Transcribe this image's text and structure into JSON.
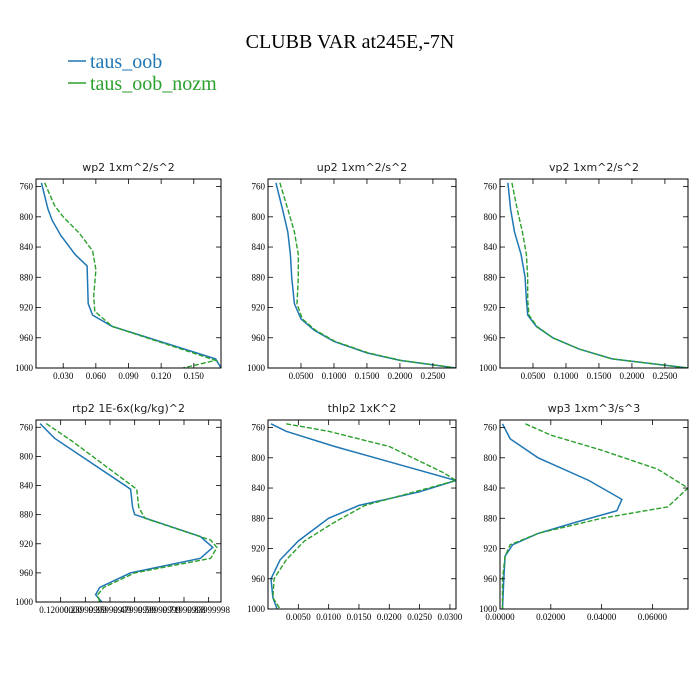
{
  "title": "CLUBB VAR at245E,-7N",
  "legend": [
    {
      "label": "taus_oob",
      "color": "#1f77b4"
    },
    {
      "label": "taus_oob_nozm",
      "color": "#2ca02c"
    }
  ],
  "chart_data": [
    {
      "type": "line",
      "title": "wp2   1xm^2/s^2",
      "ylim": [
        1000,
        750
      ],
      "yticks": [
        760,
        800,
        840,
        880,
        920,
        960,
        1000
      ],
      "xlim": [
        0.005,
        0.175
      ],
      "xticks": [
        0.03,
        0.06,
        0.09,
        0.12,
        0.15
      ],
      "xtick_labels": [
        "0.030",
        "0.060",
        "0.090",
        "0.120",
        "0.150"
      ],
      "series": [
        {
          "name": "taus_oob",
          "color": "#1f77b4",
          "dashed": false,
          "x": [
            0.01,
            0.016,
            0.02,
            0.028,
            0.041,
            0.052,
            0.053,
            0.057,
            0.075,
            0.17,
            0.175
          ],
          "y": [
            755,
            790,
            805,
            825,
            850,
            865,
            915,
            930,
            945,
            988,
            1000
          ]
        },
        {
          "name": "taus_oob_nozm",
          "color": "#2ca02c",
          "dashed": true,
          "x": [
            0.013,
            0.022,
            0.03,
            0.045,
            0.057,
            0.06,
            0.058,
            0.059,
            0.075,
            0.17,
            0.14
          ],
          "y": [
            755,
            785,
            800,
            822,
            845,
            870,
            905,
            925,
            945,
            990,
            1000
          ]
        }
      ]
    },
    {
      "type": "line",
      "title": "up2   1xm^2/s^2",
      "ylim": [
        1000,
        750
      ],
      "yticks": [
        760,
        800,
        840,
        880,
        920,
        960,
        1000
      ],
      "xlim": [
        0.0,
        0.285
      ],
      "xticks": [
        0.05,
        0.1,
        0.15,
        0.2,
        0.25
      ],
      "xtick_labels": [
        "0.0500",
        "0.1000",
        "0.1500",
        "0.2000",
        "0.2500"
      ],
      "series": [
        {
          "name": "taus_oob",
          "color": "#1f77b4",
          "dashed": false,
          "x": [
            0.012,
            0.022,
            0.03,
            0.034,
            0.036,
            0.04,
            0.05,
            0.07,
            0.1,
            0.15,
            0.2,
            0.285
          ],
          "y": [
            755,
            790,
            820,
            850,
            880,
            915,
            935,
            950,
            965,
            980,
            990,
            1000
          ]
        },
        {
          "name": "taus_oob_nozm",
          "color": "#2ca02c",
          "dashed": true,
          "x": [
            0.018,
            0.03,
            0.04,
            0.046,
            0.046,
            0.044,
            0.052,
            0.072,
            0.102,
            0.152,
            0.202,
            0.285
          ],
          "y": [
            755,
            790,
            820,
            850,
            880,
            915,
            935,
            950,
            965,
            980,
            990,
            1000
          ]
        }
      ]
    },
    {
      "type": "line",
      "title": "vp2   1xm^2/s^2",
      "ylim": [
        1000,
        750
      ],
      "yticks": [
        760,
        800,
        840,
        880,
        920,
        960,
        1000
      ],
      "xlim": [
        0.0,
        0.285
      ],
      "xticks": [
        0.05,
        0.1,
        0.15,
        0.2,
        0.25
      ],
      "xtick_labels": [
        "0.0500",
        "0.1000",
        "0.1500",
        "0.2000",
        "0.2500"
      ],
      "series": [
        {
          "name": "taus_oob",
          "color": "#1f77b4",
          "dashed": false,
          "x": [
            0.012,
            0.016,
            0.022,
            0.032,
            0.038,
            0.04,
            0.042,
            0.055,
            0.08,
            0.12,
            0.17,
            0.285
          ],
          "y": [
            755,
            790,
            820,
            850,
            880,
            910,
            930,
            945,
            960,
            975,
            988,
            1000
          ]
        },
        {
          "name": "taus_oob_nozm",
          "color": "#2ca02c",
          "dashed": true,
          "x": [
            0.018,
            0.026,
            0.034,
            0.04,
            0.042,
            0.042,
            0.044,
            0.056,
            0.08,
            0.12,
            0.17,
            0.285
          ],
          "y": [
            755,
            790,
            820,
            850,
            880,
            910,
            930,
            945,
            960,
            975,
            988,
            1000
          ]
        }
      ]
    },
    {
      "type": "line",
      "title": "rtp2   1E-6x(kg/kg)^2",
      "ylim": [
        1000,
        750
      ],
      "yticks": [
        760,
        800,
        840,
        880,
        920,
        960,
        1000
      ],
      "xlim": [
        0.0,
        0.9
      ],
      "xticks": [
        0.12,
        0.24,
        0.36,
        0.48,
        0.6,
        0.72,
        0.84
      ],
      "xtick_labels": [
        "0.12000000",
        "0.23999999",
        "0.35999999",
        "0.47999999",
        "0.59999999",
        "0.71999998",
        "0.83999998"
      ],
      "series": [
        {
          "name": "taus_oob",
          "color": "#1f77b4",
          "dashed": false,
          "x": [
            0.02,
            0.09,
            0.46,
            0.47,
            0.48,
            0.8,
            0.86,
            0.8,
            0.46,
            0.31,
            0.29,
            0.32
          ],
          "y": [
            755,
            775,
            845,
            870,
            880,
            910,
            925,
            940,
            960,
            980,
            990,
            1000
          ]
        },
        {
          "name": "taus_oob_nozm",
          "color": "#2ca02c",
          "dashed": true,
          "x": [
            0.05,
            0.18,
            0.49,
            0.5,
            0.53,
            0.85,
            0.88,
            0.85,
            0.48,
            0.33,
            0.3,
            0.31
          ],
          "y": [
            755,
            780,
            845,
            870,
            885,
            915,
            925,
            940,
            960,
            980,
            990,
            1000
          ]
        }
      ]
    },
    {
      "type": "line",
      "title": "thlp2   1xK^2",
      "ylim": [
        1000,
        750
      ],
      "yticks": [
        760,
        800,
        840,
        880,
        920,
        960,
        1000
      ],
      "xlim": [
        0.0,
        0.031
      ],
      "xticks": [
        0.005,
        0.01,
        0.015,
        0.02,
        0.025,
        0.03
      ],
      "xtick_labels": [
        "0.0050",
        "0.0100",
        "0.0150",
        "0.0200",
        "0.0250",
        "0.0300"
      ],
      "series": [
        {
          "name": "taus_oob",
          "color": "#1f77b4",
          "dashed": false,
          "x": [
            0.0005,
            0.003,
            0.011,
            0.031,
            0.025,
            0.015,
            0.01,
            0.005,
            0.002,
            0.0005,
            0.0008,
            0.0015
          ],
          "y": [
            755,
            765,
            785,
            830,
            845,
            863,
            880,
            910,
            935,
            960,
            985,
            1000
          ]
        },
        {
          "name": "taus_oob_nozm",
          "color": "#2ca02c",
          "dashed": true,
          "x": [
            0.003,
            0.01,
            0.02,
            0.029,
            0.031,
            0.016,
            0.011,
            0.006,
            0.003,
            0.001,
            0.0008,
            0.002
          ],
          "y": [
            755,
            765,
            785,
            820,
            830,
            863,
            885,
            910,
            935,
            960,
            985,
            1000
          ]
        }
      ]
    },
    {
      "type": "line",
      "title": "wp3   1xm^3/s^3",
      "ylim": [
        1000,
        750
      ],
      "yticks": [
        760,
        800,
        840,
        880,
        920,
        960,
        1000
      ],
      "xlim": [
        0.0,
        0.074
      ],
      "xticks": [
        0.0,
        0.02,
        0.04,
        0.06
      ],
      "xtick_labels": [
        "0.00000",
        "0.02000",
        "0.04000",
        "0.06000"
      ],
      "series": [
        {
          "name": "taus_oob",
          "color": "#1f77b4",
          "dashed": false,
          "x": [
            0.001,
            0.004,
            0.015,
            0.035,
            0.048,
            0.046,
            0.03,
            0.015,
            0.005,
            0.002,
            0.0015,
            0.001
          ],
          "y": [
            755,
            775,
            800,
            830,
            855,
            870,
            885,
            900,
            915,
            930,
            960,
            1000
          ]
        },
        {
          "name": "taus_oob_nozm",
          "color": "#2ca02c",
          "dashed": true,
          "x": [
            0.01,
            0.02,
            0.04,
            0.062,
            0.074,
            0.066,
            0.04,
            0.015,
            0.004,
            0.002,
            0.001,
            0.001
          ],
          "y": [
            755,
            770,
            790,
            815,
            840,
            865,
            880,
            900,
            915,
            930,
            960,
            1000
          ]
        }
      ]
    }
  ]
}
